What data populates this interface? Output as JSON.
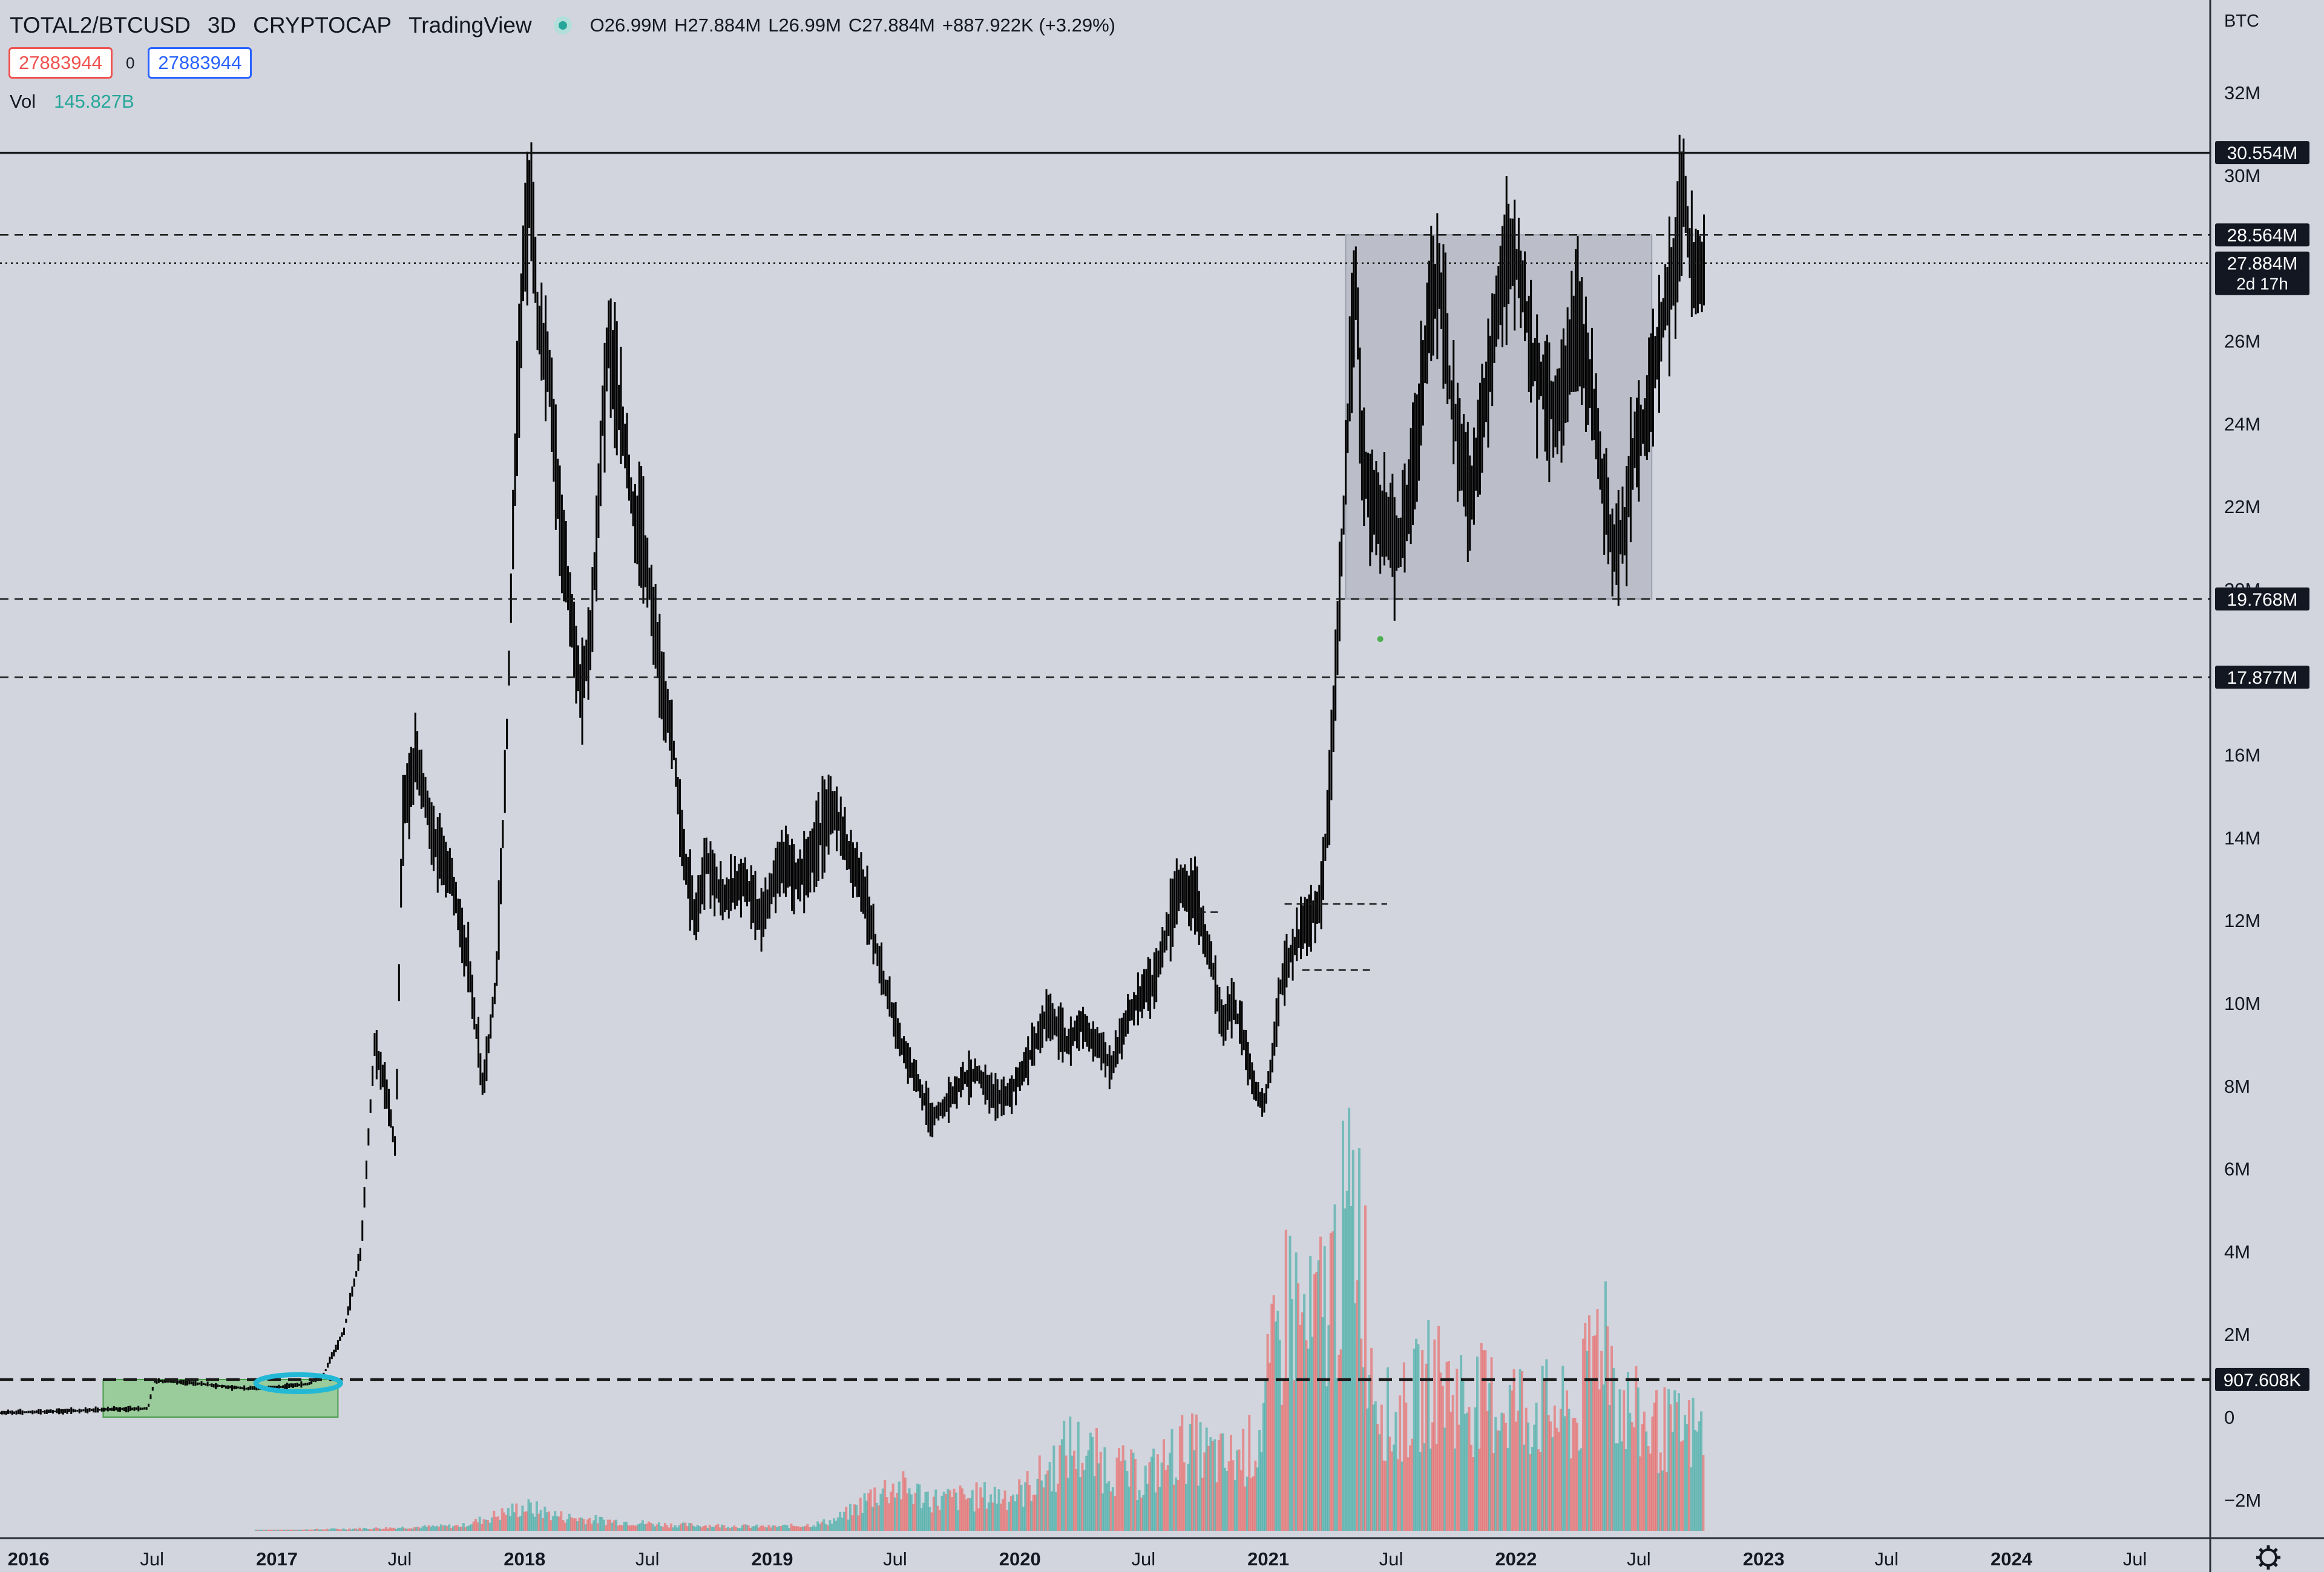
{
  "header": {
    "symbol": "TOTAL2/BTCUSD",
    "timeframe": "3D",
    "exchange": "CRYPTOCAP",
    "source": "TradingView",
    "ohlc": {
      "open": "O26.99M",
      "high": "H27.884M",
      "low": "L26.99M",
      "close": "C27.884M",
      "change": "+887.922K (+3.29%)"
    }
  },
  "order_boxes": {
    "sell": "27883944",
    "spread": "0",
    "buy": "27883944"
  },
  "volume": {
    "label": "Vol",
    "value": "145.827B"
  },
  "colors": {
    "background": "#d2d5de",
    "up": "#26a69a",
    "down": "#ef5350",
    "candle": "#000000",
    "range_box": "#b0b4bf",
    "accumulation_box": "#8fc98f",
    "ellipse": "#22b8d6"
  },
  "chart_data": {
    "type": "bar",
    "title": "TOTAL2/BTCUSD 3D",
    "y_unit": "BTC",
    "y_range": [
      -2600000,
      32600000
    ],
    "y_ticks": [
      "32M",
      "30M",
      "26M",
      "24M",
      "22M",
      "20M",
      "16M",
      "14M",
      "12M",
      "10M",
      "8M",
      "6M",
      "4M",
      "2M",
      "0",
      "−2M"
    ],
    "y_tick_values": [
      32000000,
      30000000,
      26000000,
      24000000,
      22000000,
      20000000,
      16000000,
      14000000,
      12000000,
      10000000,
      8000000,
      6000000,
      4000000,
      2000000,
      0,
      -2000000
    ],
    "x_range": [
      "2015-11-20",
      "2024-10-20"
    ],
    "x_ticks": [
      {
        "label": "2016",
        "date": "2016-01-01",
        "bold": true
      },
      {
        "label": "Jul",
        "date": "2016-07-01",
        "bold": false
      },
      {
        "label": "2017",
        "date": "2017-01-01",
        "bold": true
      },
      {
        "label": "Jul",
        "date": "2017-07-01",
        "bold": false
      },
      {
        "label": "2018",
        "date": "2018-01-01",
        "bold": true
      },
      {
        "label": "Jul",
        "date": "2018-07-01",
        "bold": false
      },
      {
        "label": "2019",
        "date": "2019-01-01",
        "bold": true
      },
      {
        "label": "Jul",
        "date": "2019-07-01",
        "bold": false
      },
      {
        "label": "2020",
        "date": "2020-01-01",
        "bold": true
      },
      {
        "label": "Jul",
        "date": "2020-07-01",
        "bold": false
      },
      {
        "label": "2021",
        "date": "2021-01-01",
        "bold": true
      },
      {
        "label": "Jul",
        "date": "2021-07-01",
        "bold": false
      },
      {
        "label": "2022",
        "date": "2022-01-01",
        "bold": true
      },
      {
        "label": "Jul",
        "date": "2022-07-01",
        "bold": false
      },
      {
        "label": "2023",
        "date": "2023-01-01",
        "bold": true
      },
      {
        "label": "Jul",
        "date": "2023-07-01",
        "bold": false
      },
      {
        "label": "2024",
        "date": "2024-01-01",
        "bold": true
      },
      {
        "label": "Jul",
        "date": "2024-07-01",
        "bold": false
      }
    ],
    "horizontal_levels": [
      {
        "value": 30554000,
        "label": "30.554M",
        "style": "solid"
      },
      {
        "value": 28564000,
        "label": "28.564M",
        "style": "dashed"
      },
      {
        "value": 27884000,
        "label": "27.884M",
        "sublabel": "2d 17h",
        "style": "dotted"
      },
      {
        "value": 19768000,
        "label": "19.768M",
        "style": "dashed"
      },
      {
        "value": 17877000,
        "label": "17.877M",
        "style": "dashed"
      },
      {
        "value": 907608,
        "label": "907.608K",
        "style": "dashed-bold"
      }
    ],
    "price_series": [
      {
        "date": "2015-11-20",
        "value": 107000
      },
      {
        "date": "2016-02-01",
        "value": 133000
      },
      {
        "date": "2016-05-01",
        "value": 185000
      },
      {
        "date": "2016-06-25",
        "value": 212000
      },
      {
        "date": "2016-07-05",
        "value": 880000
      },
      {
        "date": "2016-09-01",
        "value": 820000
      },
      {
        "date": "2016-11-15",
        "value": 690000
      },
      {
        "date": "2017-01-01",
        "value": 720000
      },
      {
        "date": "2017-02-15",
        "value": 800000
      },
      {
        "date": "2017-03-10",
        "value": 1000000
      },
      {
        "date": "2017-04-10",
        "value": 2100000
      },
      {
        "date": "2017-05-05",
        "value": 4000000
      },
      {
        "date": "2017-05-25",
        "value": 9000000
      },
      {
        "date": "2017-06-10",
        "value": 8000000
      },
      {
        "date": "2017-06-25",
        "value": 6500000
      },
      {
        "date": "2017-07-05",
        "value": 14500000
      },
      {
        "date": "2017-07-25",
        "value": 16000000
      },
      {
        "date": "2017-08-20",
        "value": 14000000
      },
      {
        "date": "2017-09-15",
        "value": 13000000
      },
      {
        "date": "2017-10-10",
        "value": 11000000
      },
      {
        "date": "2017-11-01",
        "value": 8000000
      },
      {
        "date": "2017-11-20",
        "value": 10500000
      },
      {
        "date": "2017-12-05",
        "value": 16000000
      },
      {
        "date": "2017-12-20",
        "value": 24000000
      },
      {
        "date": "2018-01-01",
        "value": 28500000
      },
      {
        "date": "2018-01-10",
        "value": 30000000
      },
      {
        "date": "2018-01-20",
        "value": 26500000
      },
      {
        "date": "2018-02-05",
        "value": 25500000
      },
      {
        "date": "2018-02-20",
        "value": 22000000
      },
      {
        "date": "2018-03-10",
        "value": 19500000
      },
      {
        "date": "2018-03-25",
        "value": 17500000
      },
      {
        "date": "2018-04-10",
        "value": 19000000
      },
      {
        "date": "2018-04-25",
        "value": 24000000
      },
      {
        "date": "2018-05-05",
        "value": 26000000
      },
      {
        "date": "2018-05-20",
        "value": 24500000
      },
      {
        "date": "2018-06-10",
        "value": 22000000
      },
      {
        "date": "2018-07-01",
        "value": 20500000
      },
      {
        "date": "2018-07-20",
        "value": 18000000
      },
      {
        "date": "2018-08-10",
        "value": 16000000
      },
      {
        "date": "2018-08-25",
        "value": 13500000
      },
      {
        "date": "2018-09-10",
        "value": 12000000
      },
      {
        "date": "2018-09-25",
        "value": 13500000
      },
      {
        "date": "2018-10-20",
        "value": 12500000
      },
      {
        "date": "2018-11-20",
        "value": 13000000
      },
      {
        "date": "2018-12-15",
        "value": 12000000
      },
      {
        "date": "2019-01-15",
        "value": 13500000
      },
      {
        "date": "2019-02-10",
        "value": 13000000
      },
      {
        "date": "2019-03-10",
        "value": 14000000
      },
      {
        "date": "2019-04-01",
        "value": 14800000
      },
      {
        "date": "2019-04-20",
        "value": 13800000
      },
      {
        "date": "2019-05-10",
        "value": 13000000
      },
      {
        "date": "2019-05-25",
        "value": 12000000
      },
      {
        "date": "2019-06-15",
        "value": 10500000
      },
      {
        "date": "2019-07-10",
        "value": 9000000
      },
      {
        "date": "2019-08-10",
        "value": 7800000
      },
      {
        "date": "2019-08-25",
        "value": 7200000
      },
      {
        "date": "2019-09-15",
        "value": 7600000
      },
      {
        "date": "2019-10-10",
        "value": 8200000
      },
      {
        "date": "2019-11-01",
        "value": 8300000
      },
      {
        "date": "2019-11-25",
        "value": 7700000
      },
      {
        "date": "2019-12-15",
        "value": 7800000
      },
      {
        "date": "2020-01-10",
        "value": 8500000
      },
      {
        "date": "2020-02-10",
        "value": 9800000
      },
      {
        "date": "2020-03-10",
        "value": 9000000
      },
      {
        "date": "2020-04-01",
        "value": 9500000
      },
      {
        "date": "2020-04-25",
        "value": 9000000
      },
      {
        "date": "2020-05-15",
        "value": 8500000
      },
      {
        "date": "2020-06-10",
        "value": 9800000
      },
      {
        "date": "2020-07-15",
        "value": 10500000
      },
      {
        "date": "2020-08-10",
        "value": 12000000
      },
      {
        "date": "2020-08-25",
        "value": 12800000
      },
      {
        "date": "2020-09-15",
        "value": 12500000
      },
      {
        "date": "2020-10-10",
        "value": 11000000
      },
      {
        "date": "2020-10-25",
        "value": 9500000
      },
      {
        "date": "2020-11-10",
        "value": 10000000
      },
      {
        "date": "2020-11-25",
        "value": 9200000
      },
      {
        "date": "2020-12-10",
        "value": 8000000
      },
      {
        "date": "2020-12-25",
        "value": 7500000
      },
      {
        "date": "2021-01-05",
        "value": 8500000
      },
      {
        "date": "2021-01-20",
        "value": 10500000
      },
      {
        "date": "2021-02-10",
        "value": 11500000
      },
      {
        "date": "2021-03-01",
        "value": 12000000
      },
      {
        "date": "2021-03-20",
        "value": 12500000
      },
      {
        "date": "2021-04-01",
        "value": 15000000
      },
      {
        "date": "2021-04-15",
        "value": 19500000
      },
      {
        "date": "2021-05-01",
        "value": 25000000
      },
      {
        "date": "2021-05-10",
        "value": 27500000
      },
      {
        "date": "2021-05-20",
        "value": 23000000
      },
      {
        "date": "2021-06-05",
        "value": 22000000
      },
      {
        "date": "2021-06-25",
        "value": 21500000
      },
      {
        "date": "2021-07-10",
        "value": 21000000
      },
      {
        "date": "2021-07-25",
        "value": 22000000
      },
      {
        "date": "2021-08-10",
        "value": 24000000
      },
      {
        "date": "2021-08-25",
        "value": 26500000
      },
      {
        "date": "2021-09-10",
        "value": 27500000
      },
      {
        "date": "2021-09-25",
        "value": 25000000
      },
      {
        "date": "2021-10-10",
        "value": 23500000
      },
      {
        "date": "2021-10-25",
        "value": 22000000
      },
      {
        "date": "2021-11-10",
        "value": 24000000
      },
      {
        "date": "2021-11-25",
        "value": 25500000
      },
      {
        "date": "2021-12-10",
        "value": 27500000
      },
      {
        "date": "2021-12-25",
        "value": 28200000
      },
      {
        "date": "2022-01-10",
        "value": 27500000
      },
      {
        "date": "2022-01-25",
        "value": 25500000
      },
      {
        "date": "2022-02-10",
        "value": 25000000
      },
      {
        "date": "2022-02-25",
        "value": 24300000
      },
      {
        "date": "2022-03-15",
        "value": 25000000
      },
      {
        "date": "2022-04-01",
        "value": 26500000
      },
      {
        "date": "2022-04-20",
        "value": 25000000
      },
      {
        "date": "2022-05-10",
        "value": 22500000
      },
      {
        "date": "2022-05-25",
        "value": 21000000
      },
      {
        "date": "2022-06-10",
        "value": 21500000
      },
      {
        "date": "2022-06-25",
        "value": 23500000
      },
      {
        "date": "2022-07-10",
        "value": 24000000
      },
      {
        "date": "2022-07-25",
        "value": 25500000
      },
      {
        "date": "2022-08-10",
        "value": 27000000
      },
      {
        "date": "2022-08-25",
        "value": 28000000
      },
      {
        "date": "2022-09-05",
        "value": 29800000
      },
      {
        "date": "2022-09-15",
        "value": 28000000
      },
      {
        "date": "2022-09-25",
        "value": 27500000
      },
      {
        "date": "2022-10-05",
        "value": 27884000
      }
    ],
    "volume_series": [
      {
        "date": "2016-01-01",
        "value": 0
      },
      {
        "date": "2017-01-01",
        "value": 20000
      },
      {
        "date": "2017-06-01",
        "value": 80000
      },
      {
        "date": "2017-10-01",
        "value": 150000
      },
      {
        "date": "2018-01-01",
        "value": 700000
      },
      {
        "date": "2018-03-01",
        "value": 400000
      },
      {
        "date": "2018-05-01",
        "value": 300000
      },
      {
        "date": "2018-08-01",
        "value": 180000
      },
      {
        "date": "2019-01-01",
        "value": 120000
      },
      {
        "date": "2019-03-01",
        "value": 180000
      },
      {
        "date": "2019-04-01",
        "value": 300000
      },
      {
        "date": "2019-05-01",
        "value": 600000
      },
      {
        "date": "2019-06-01",
        "value": 1100000
      },
      {
        "date": "2019-07-01",
        "value": 1300000
      },
      {
        "date": "2019-09-01",
        "value": 900000
      },
      {
        "date": "2019-11-01",
        "value": 1000000
      },
      {
        "date": "2020-01-01",
        "value": 1100000
      },
      {
        "date": "2020-02-15",
        "value": 1800000
      },
      {
        "date": "2020-03-15",
        "value": 2500000
      },
      {
        "date": "2020-05-01",
        "value": 2000000
      },
      {
        "date": "2020-07-01",
        "value": 1500000
      },
      {
        "date": "2020-09-01",
        "value": 2500000
      },
      {
        "date": "2020-11-01",
        "value": 2000000
      },
      {
        "date": "2020-12-15",
        "value": 2500000
      },
      {
        "date": "2021-01-10",
        "value": 5000000
      },
      {
        "date": "2021-02-01",
        "value": 7000000
      },
      {
        "date": "2021-03-01",
        "value": 5500000
      },
      {
        "date": "2021-04-01",
        "value": 7000000
      },
      {
        "date": "2021-05-01",
        "value": 9000000
      },
      {
        "date": "2021-05-15",
        "value": 9500000
      },
      {
        "date": "2021-06-01",
        "value": 5000000
      },
      {
        "date": "2021-07-01",
        "value": 3000000
      },
      {
        "date": "2021-09-01",
        "value": 4500000
      },
      {
        "date": "2021-10-01",
        "value": 4000000
      },
      {
        "date": "2021-11-15",
        "value": 3800000
      },
      {
        "date": "2022-01-01",
        "value": 3700000
      },
      {
        "date": "2022-02-15",
        "value": 3500000
      },
      {
        "date": "2022-04-01",
        "value": 3200000
      },
      {
        "date": "2022-05-10",
        "value": 6500000
      },
      {
        "date": "2022-06-01",
        "value": 3800000
      },
      {
        "date": "2022-07-15",
        "value": 3000000
      },
      {
        "date": "2022-10-05",
        "value": 2800000
      }
    ],
    "annotations": [
      {
        "kind": "rectangle",
        "from": "2021-04-25",
        "to": "2022-07-20",
        "low": 19768000,
        "high": 28564000,
        "color": "#b0b4bf"
      },
      {
        "kind": "rectangle",
        "from": "2016-04-20",
        "to": "2017-04-01",
        "low": 0,
        "high": 907608,
        "color": "#8fc98f"
      },
      {
        "kind": "ellipse",
        "from": "2016-12-01",
        "to": "2017-04-05",
        "center": 907608,
        "color": "#22b8d6"
      },
      {
        "kind": "segment",
        "from": "2021-01-25",
        "to": "2021-06-25",
        "value": 12400000
      },
      {
        "kind": "segment",
        "from": "2021-02-20",
        "to": "2021-06-05",
        "value": 10800000
      },
      {
        "kind": "segment",
        "from": "2020-09-20",
        "to": "2020-10-20",
        "value": 12200000
      },
      {
        "kind": "dot",
        "date": "2021-06-15",
        "value": 18800000,
        "color": "#4caf50"
      }
    ]
  }
}
